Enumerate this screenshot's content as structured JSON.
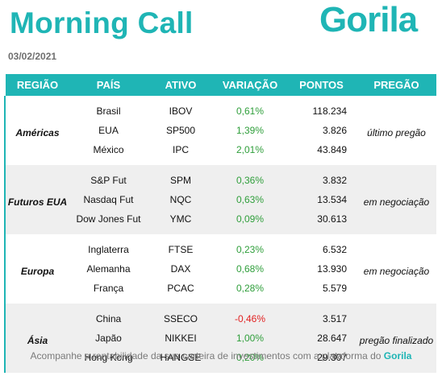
{
  "header": {
    "title": "Morning Call",
    "logo_text": "Gorila",
    "date": "03/02/2021"
  },
  "table": {
    "columns": [
      "REGIÃO",
      "PAÍS",
      "ATIVO",
      "VARIAÇÃO",
      "PONTOS",
      "PREGÃO"
    ],
    "groups": [
      {
        "region": "Américas",
        "status": "último pregão",
        "rows": [
          {
            "country": "Brasil",
            "asset": "IBOV",
            "change": "0,61%",
            "points": "118.234"
          },
          {
            "country": "EUA",
            "asset": "SP500",
            "change": "1,39%",
            "points": "3.826"
          },
          {
            "country": "México",
            "asset": "IPC",
            "change": "2,01%",
            "points": "43.849"
          }
        ]
      },
      {
        "region": "Futuros EUA",
        "status": "em negociação",
        "rows": [
          {
            "country": "S&P Fut",
            "asset": "SPM",
            "change": "0,36%",
            "points": "3.832"
          },
          {
            "country": "Nasdaq Fut",
            "asset": "NQC",
            "change": "0,63%",
            "points": "13.534"
          },
          {
            "country": "Dow Jones Fut",
            "asset": "YMC",
            "change": "0,09%",
            "points": "30.613"
          }
        ]
      },
      {
        "region": "Europa",
        "status": "em negociação",
        "rows": [
          {
            "country": "Inglaterra",
            "asset": "FTSE",
            "change": "0,23%",
            "points": "6.532"
          },
          {
            "country": "Alemanha",
            "asset": "DAX",
            "change": "0,68%",
            "points": "13.930"
          },
          {
            "country": "França",
            "asset": "PCAC",
            "change": "0,28%",
            "points": "5.579"
          }
        ]
      },
      {
        "region": "Ásia",
        "status": "pregão finalizado",
        "rows": [
          {
            "country": "China",
            "asset": "SSECO",
            "change": "-0,46%",
            "points": "3.517"
          },
          {
            "country": "Japão",
            "asset": "NIKKEI",
            "change": "1,00%",
            "points": "28.647"
          },
          {
            "country": "Hong Kong",
            "asset": "HANGSE",
            "change": "0,20%",
            "points": "29.307"
          }
        ]
      }
    ]
  },
  "footer": {
    "text": "Acompanhe a rentabilidade da sua carteira de investimentos com a plataforma do",
    "brand": "Gorila"
  },
  "colors": {
    "accent": "#1fb5b5",
    "positive": "#2e9e3a",
    "negative": "#e22222",
    "row_alt": "#efefef"
  }
}
